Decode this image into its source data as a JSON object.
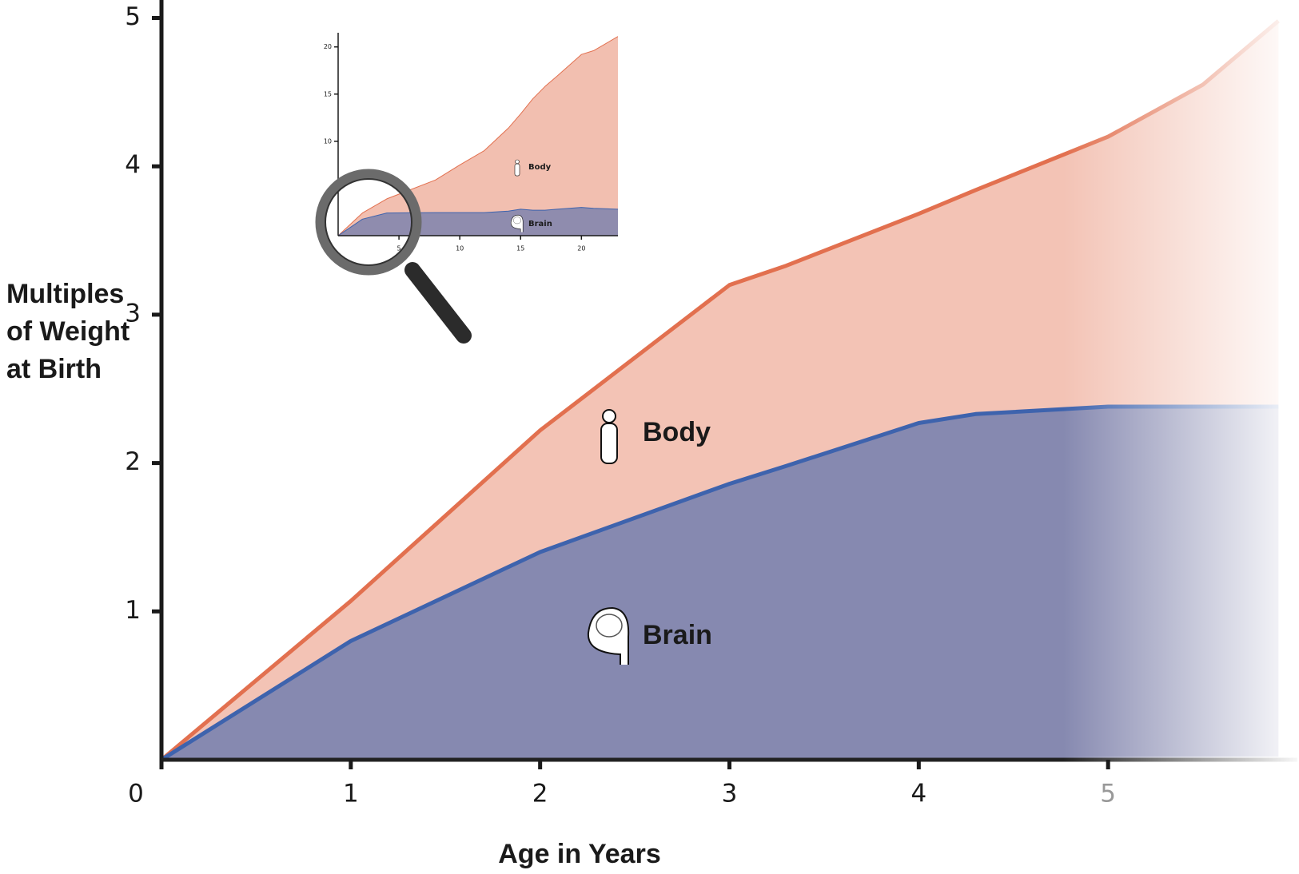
{
  "chart_data": [
    {
      "type": "area",
      "ylabel": [
        "Multiples",
        "of Weight",
        "at Birth"
      ],
      "xlabel": "Age in Years",
      "x": [
        0,
        1,
        2,
        3,
        3.3,
        4,
        4.3,
        5,
        5.5,
        5.9
      ],
      "series": [
        {
          "name": "Body",
          "color": "#e2704f",
          "values": [
            0,
            1.07,
            2.22,
            3.2,
            3.33,
            3.68,
            3.84,
            4.2,
            4.55,
            4.98
          ]
        },
        {
          "name": "Brain",
          "color": "#3e63ad",
          "values": [
            0,
            0.8,
            1.4,
            1.86,
            1.98,
            2.27,
            2.33,
            2.38,
            2.38,
            2.38
          ]
        }
      ],
      "xlim": [
        0,
        6
      ],
      "ylim": [
        0,
        5
      ],
      "xticks": [
        0,
        1,
        2,
        3,
        4,
        5
      ],
      "yticks": [
        1,
        2,
        3,
        4,
        5
      ]
    },
    {
      "type": "area",
      "x": [
        0,
        2,
        4,
        8,
        10,
        12,
        14,
        15,
        16,
        17,
        18,
        20,
        21,
        23
      ],
      "series": [
        {
          "name": "Body",
          "color": "#e2704f",
          "values": [
            0,
            2.4,
            3.9,
            5.9,
            7.5,
            9,
            11.4,
            12.9,
            14.5,
            15.8,
            16.9,
            19.2,
            19.6,
            21.1
          ]
        },
        {
          "name": "Brain",
          "color": "#3e63ad",
          "values": [
            0,
            1.75,
            2.4,
            2.45,
            2.45,
            2.45,
            2.6,
            2.8,
            2.7,
            2.7,
            2.8,
            3.0,
            2.9,
            2.8
          ]
        }
      ],
      "xlim": [
        0,
        23
      ],
      "ylim": [
        0,
        21.5
      ],
      "xticks": [
        5,
        10,
        15,
        20
      ],
      "yticks": [
        10,
        15,
        20
      ]
    }
  ]
}
